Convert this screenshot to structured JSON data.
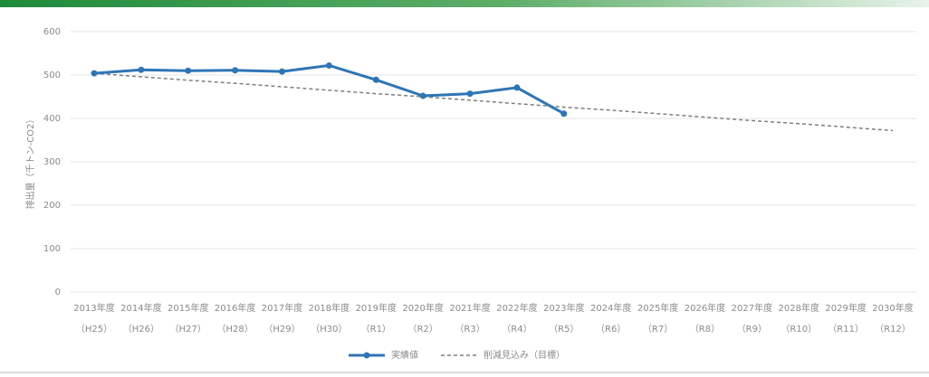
{
  "chart_data": {
    "type": "line",
    "y_label": "排出量（千トン-CO2）",
    "categories": [
      [
        "2013年度",
        "（H25）"
      ],
      [
        "2014年度",
        "（H26）"
      ],
      [
        "2015年度",
        "（H27）"
      ],
      [
        "2016年度",
        "（H28）"
      ],
      [
        "2017年度",
        "（H29）"
      ],
      [
        "2018年度",
        "（H30）"
      ],
      [
        "2019年度",
        "（R1）"
      ],
      [
        "2020年度",
        "（R2）"
      ],
      [
        "2021年度",
        "（R3）"
      ],
      [
        "2022年度",
        "（R4）"
      ],
      [
        "2023年度",
        "（R5）"
      ],
      [
        "2024年度",
        "（R6）"
      ],
      [
        "2025年度",
        "（R7）"
      ],
      [
        "2026年度",
        "（R8）"
      ],
      [
        "2027年度",
        "（R9）"
      ],
      [
        "2028年度",
        "（R10）"
      ],
      [
        "2029年度",
        "（R11）"
      ],
      [
        "2030年度",
        "（R12）"
      ]
    ],
    "series": [
      {
        "name": "実績値",
        "color": "#2e75b6",
        "dashed": false,
        "markers": true,
        "values": [
          504,
          512,
          510,
          511,
          508,
          522,
          489,
          452,
          457,
          471,
          411,
          null,
          null,
          null,
          null,
          null,
          null,
          null
        ]
      },
      {
        "name": "削減見込み（目標）",
        "color": "#7f7f7f",
        "dashed": true,
        "markers": false,
        "values": [
          504,
          496,
          488,
          481,
          473,
          465,
          457,
          450,
          442,
          434,
          426,
          419,
          411,
          403,
          395,
          388,
          380,
          372
        ]
      }
    ],
    "ylim": [
      0,
      600
    ],
    "yticks": [
      0,
      100,
      200,
      300,
      400,
      500,
      600
    ],
    "grid": true,
    "legend": "bottom"
  }
}
